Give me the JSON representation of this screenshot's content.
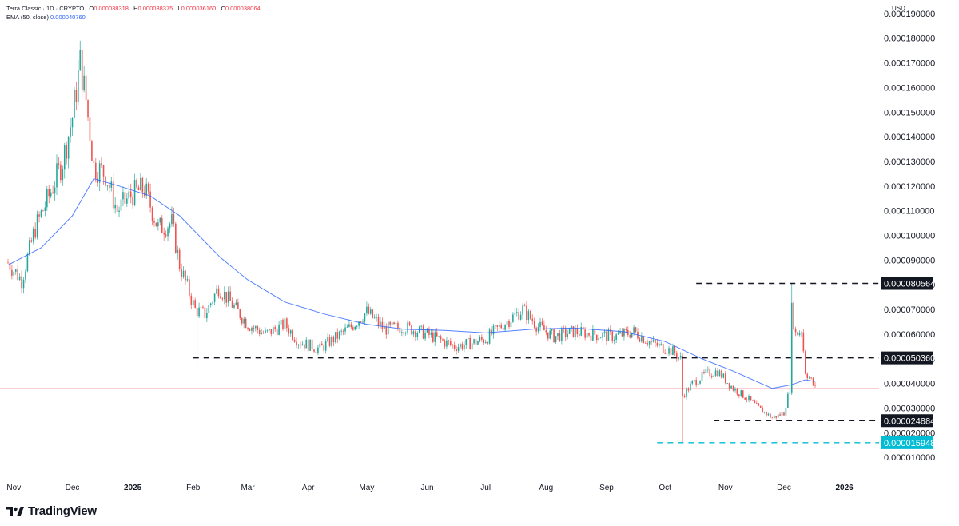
{
  "legend": {
    "symbol": "Terra Classic · 1D · CRYPTO",
    "open_label": "O",
    "open": "0.000038318",
    "high_label": "H",
    "high": "0.000038375",
    "low_label": "L",
    "low": "0.000036160",
    "close_label": "C",
    "close": "0.000038064",
    "ema_label": "EMA (50, close)",
    "ema_value": "0.000040760"
  },
  "currency": "USD",
  "branding": {
    "name": "TradingView"
  },
  "colors": {
    "up": "#26a69a",
    "down": "#ef5350",
    "ema": "#2962ff",
    "cyan": "#00bcd4",
    "dark": "#131722"
  },
  "chart_data": {
    "type": "candlestick",
    "symbol": "Terra Classic",
    "interval": "1D",
    "ylim": [
      6.5e-06,
      0.0001945
    ],
    "y_ticks": [
      "0.000010000",
      "0.000020000",
      "0.000030000",
      "0.000040000",
      "0.000050000",
      "0.000060000",
      "0.000070000",
      "0.000080000",
      "0.000090000",
      "0.000100000",
      "0.000110000",
      "0.000120000",
      "0.000130000",
      "0.000140000",
      "0.000150000",
      "0.000160000",
      "0.000170000",
      "0.000180000",
      "0.000190000"
    ],
    "x_ticks": [
      "Nov",
      "Dec",
      "2025",
      "Feb",
      "Mar",
      "Apr",
      "May",
      "Jun",
      "Jul",
      "Aug",
      "Sep",
      "Oct",
      "Nov",
      "Dec",
      "2026"
    ],
    "x_range": [
      "2024-10-29",
      "2025-12-17"
    ],
    "levels": [
      {
        "label": "0.000080564",
        "value": 8.0564e-05,
        "style": "dashed",
        "color": "#131722"
      },
      {
        "label": "0.000050360",
        "value": 5.036e-05,
        "style": "dashed",
        "color": "#131722"
      },
      {
        "label": "0.000024884",
        "value": 2.4884e-05,
        "style": "dashed",
        "color": "#131722"
      },
      {
        "label": "0.000015948",
        "value": 1.5948e-05,
        "style": "dashed",
        "color": "#00bcd4"
      }
    ],
    "current_price": 3.8064e-05,
    "price_path": [
      {
        "date": "2024-10-29",
        "close": 8.9e-05
      },
      {
        "date": "2024-11-05",
        "close": 8.2e-05
      },
      {
        "date": "2024-11-12",
        "close": 0.000103
      },
      {
        "date": "2024-11-19",
        "close": 0.000116
      },
      {
        "date": "2024-11-26",
        "close": 0.00013
      },
      {
        "date": "2024-12-01",
        "close": 0.000148
      },
      {
        "date": "2024-12-05",
        "close": 0.00017
      },
      {
        "date": "2024-12-08",
        "close": 0.000155
      },
      {
        "date": "2024-12-12",
        "close": 0.000128
      },
      {
        "date": "2024-12-18",
        "close": 0.000125
      },
      {
        "date": "2024-12-24",
        "close": 0.00011
      },
      {
        "date": "2025-01-01",
        "close": 0.000117
      },
      {
        "date": "2025-01-07",
        "close": 0.000119
      },
      {
        "date": "2025-01-14",
        "close": 0.000103
      },
      {
        "date": "2025-01-21",
        "close": 0.000105
      },
      {
        "date": "2025-01-25",
        "close": 8.8e-05
      },
      {
        "date": "2025-02-02",
        "close": 7e-05
      },
      {
        "date": "2025-02-07",
        "close": 6.8e-05
      },
      {
        "date": "2025-02-14",
        "close": 7.9e-05
      },
      {
        "date": "2025-02-21",
        "close": 7.2e-05
      },
      {
        "date": "2025-03-01",
        "close": 6.4e-05
      },
      {
        "date": "2025-03-10",
        "close": 6e-05
      },
      {
        "date": "2025-03-20",
        "close": 6.4e-05
      },
      {
        "date": "2025-03-27",
        "close": 5.7e-05
      },
      {
        "date": "2025-04-07",
        "close": 5.4e-05
      },
      {
        "date": "2025-04-14",
        "close": 5.8e-05
      },
      {
        "date": "2025-04-23",
        "close": 6.3e-05
      },
      {
        "date": "2025-05-01",
        "close": 6.9e-05
      },
      {
        "date": "2025-05-10",
        "close": 6.2e-05
      },
      {
        "date": "2025-05-20",
        "close": 6.3e-05
      },
      {
        "date": "2025-06-01",
        "close": 6e-05
      },
      {
        "date": "2025-06-15",
        "close": 5.5e-05
      },
      {
        "date": "2025-06-22",
        "close": 5.6e-05
      },
      {
        "date": "2025-07-01",
        "close": 5.8e-05
      },
      {
        "date": "2025-07-10",
        "close": 6.4e-05
      },
      {
        "date": "2025-07-20",
        "close": 7e-05
      },
      {
        "date": "2025-07-28",
        "close": 6.3e-05
      },
      {
        "date": "2025-08-05",
        "close": 5.9e-05
      },
      {
        "date": "2025-08-15",
        "close": 6.1e-05
      },
      {
        "date": "2025-08-25",
        "close": 6e-05
      },
      {
        "date": "2025-09-05",
        "close": 5.9e-05
      },
      {
        "date": "2025-09-15",
        "close": 6.1e-05
      },
      {
        "date": "2025-09-25",
        "close": 5.6e-05
      },
      {
        "date": "2025-10-05",
        "close": 5.3e-05
      },
      {
        "date": "2025-10-09",
        "close": 5e-05
      },
      {
        "date": "2025-10-10",
        "close": 3.5e-05
      },
      {
        "date": "2025-10-15",
        "close": 4e-05
      },
      {
        "date": "2025-10-22",
        "close": 4.4e-05
      },
      {
        "date": "2025-10-28",
        "close": 4.5e-05
      },
      {
        "date": "2025-11-05",
        "close": 3.8e-05
      },
      {
        "date": "2025-11-12",
        "close": 3.4e-05
      },
      {
        "date": "2025-11-18",
        "close": 3e-05
      },
      {
        "date": "2025-11-25",
        "close": 2.6e-05
      },
      {
        "date": "2025-12-01",
        "close": 2.8e-05
      },
      {
        "date": "2025-12-04",
        "close": 3.8e-05
      },
      {
        "date": "2025-12-05",
        "close": 7e-05
      },
      {
        "date": "2025-12-07",
        "close": 6e-05
      },
      {
        "date": "2025-12-10",
        "close": 6.2e-05
      },
      {
        "date": "2025-12-12",
        "close": 4.5e-05
      },
      {
        "date": "2025-12-15",
        "close": 4.1e-05
      },
      {
        "date": "2025-12-17",
        "close": 3.81e-05
      }
    ],
    "spikes": [
      {
        "date": "2024-12-05",
        "high": 0.000179
      },
      {
        "date": "2025-02-03",
        "low": 4.75e-05
      },
      {
        "date": "2025-10-10",
        "low": 1.5948e-05
      },
      {
        "date": "2025-12-05",
        "high": 8.0564e-05
      }
    ],
    "ema_path": [
      {
        "date": "2024-10-29",
        "value": 8.8e-05
      },
      {
        "date": "2024-11-15",
        "value": 9.5e-05
      },
      {
        "date": "2024-12-01",
        "value": 0.000108
      },
      {
        "date": "2024-12-12",
        "value": 0.000123
      },
      {
        "date": "2024-12-25",
        "value": 0.00012
      },
      {
        "date": "2025-01-10",
        "value": 0.000116
      },
      {
        "date": "2025-01-25",
        "value": 0.000108
      },
      {
        "date": "2025-02-15",
        "value": 9.1e-05
      },
      {
        "date": "2025-03-01",
        "value": 8.2e-05
      },
      {
        "date": "2025-03-20",
        "value": 7.3e-05
      },
      {
        "date": "2025-04-10",
        "value": 6.8e-05
      },
      {
        "date": "2025-05-01",
        "value": 6.4e-05
      },
      {
        "date": "2025-05-20",
        "value": 6.2e-05
      },
      {
        "date": "2025-06-10",
        "value": 6.15e-05
      },
      {
        "date": "2025-07-01",
        "value": 6.05e-05
      },
      {
        "date": "2025-07-25",
        "value": 6.2e-05
      },
      {
        "date": "2025-08-15",
        "value": 6.25e-05
      },
      {
        "date": "2025-09-10",
        "value": 6.1e-05
      },
      {
        "date": "2025-10-01",
        "value": 5.7e-05
      },
      {
        "date": "2025-10-20",
        "value": 5e-05
      },
      {
        "date": "2025-11-05",
        "value": 4.5e-05
      },
      {
        "date": "2025-11-25",
        "value": 3.8e-05
      },
      {
        "date": "2025-12-05",
        "value": 3.95e-05
      },
      {
        "date": "2025-12-12",
        "value": 4.15e-05
      },
      {
        "date": "2025-12-17",
        "value": 4.08e-05
      }
    ]
  }
}
